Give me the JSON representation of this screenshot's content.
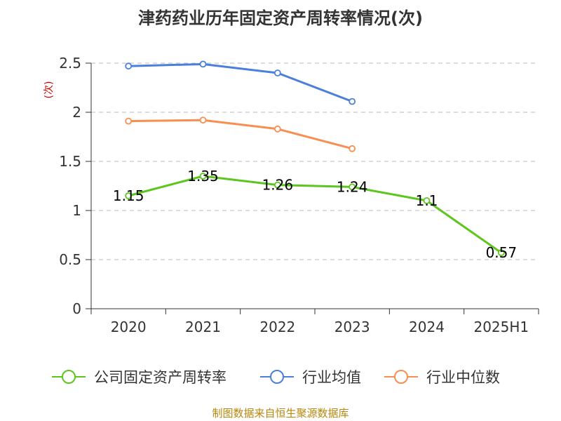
{
  "chart_data": {
    "type": "line",
    "title": "津药药业历年固定资产周转率情况(次)",
    "ylabel": "(次)",
    "categories": [
      "2020",
      "2021",
      "2022",
      "2023",
      "2024",
      "2025H1"
    ],
    "ylim": [
      0,
      2.5
    ],
    "yticks": [
      "0",
      "0.5",
      "1",
      "1.5",
      "2",
      "2.5"
    ],
    "grid": true,
    "legend_position": "bottom",
    "series": [
      {
        "name": "公司固定资产周转率",
        "color": "#5cc61e",
        "values": [
          1.15,
          1.35,
          1.26,
          1.24,
          1.1,
          0.57
        ],
        "labels": [
          "1.15",
          "1.35",
          "1.26",
          "1.24",
          "1.1",
          "0.57"
        ]
      },
      {
        "name": "行业均值",
        "color": "#4a7fdc",
        "values": [
          2.47,
          2.49,
          2.4,
          2.11,
          null,
          null
        ]
      },
      {
        "name": "行业中位数",
        "color": "#f98e52",
        "values": [
          1.91,
          1.92,
          1.83,
          1.63,
          null,
          null
        ]
      }
    ]
  },
  "source": "制图数据来自恒生聚源数据库"
}
